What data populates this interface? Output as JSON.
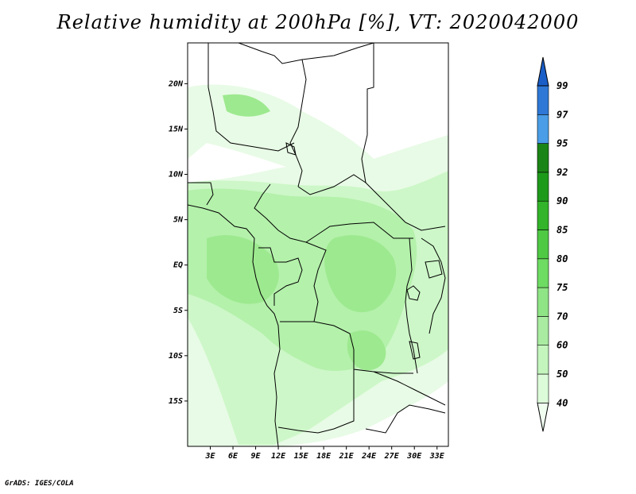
{
  "title": "Relative humidity at 200hPa [%], VT: 2020042000",
  "footer": "GrADS: IGES/COLA",
  "map": {
    "lon_range": [
      0,
      34.5
    ],
    "lat_range": [
      -20,
      24.5
    ],
    "lat_ticks": [
      "20N",
      "15N",
      "10N",
      "5N",
      "EQ",
      "5S",
      "10S",
      "15S"
    ],
    "lat_values": [
      20,
      15,
      10,
      5,
      0,
      -5,
      -10,
      -15
    ],
    "lon_ticks": [
      "3E",
      "6E",
      "9E",
      "12E",
      "15E",
      "18E",
      "21E",
      "24E",
      "27E",
      "30E",
      "33E"
    ],
    "lon_values": [
      3,
      6,
      9,
      12,
      15,
      18,
      21,
      24,
      27,
      30,
      33
    ],
    "colors": {
      "c40_50": "#e8fbe6",
      "c50_60": "#cdf7c8",
      "c60_70": "#b4f1ab",
      "c70_75": "#9de98f"
    }
  },
  "colorbar": {
    "levels": [
      "40",
      "50",
      "60",
      "70",
      "75",
      "80",
      "85",
      "90",
      "92",
      "95",
      "97",
      "99"
    ],
    "colors": [
      "#f0fef0",
      "#dcfcd9",
      "#c3f5bd",
      "#a9eca1",
      "#8fe485",
      "#6edb63",
      "#4fc944",
      "#33b42a",
      "#1e9a1a",
      "#1b8416",
      "#4a9de6",
      "#2f78d6",
      "#1a5ec8"
    ]
  }
}
